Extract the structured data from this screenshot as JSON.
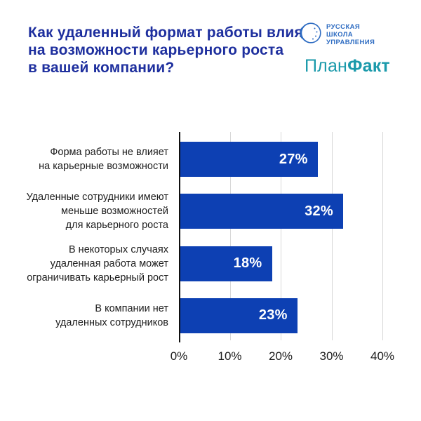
{
  "header": {
    "title_color": "#1e2f9e"
  },
  "logos": {
    "rsu": {
      "text": "РУССКАЯ\nШКОЛА\nУПРАВЛЕНИЯ",
      "color": "#2e6cc2",
      "icon": "face-in-circle-emblem-icon"
    },
    "planfact": {
      "text_regular": "План",
      "text_bold": "Факт",
      "color": "#1b9aab"
    }
  },
  "chart_data": {
    "type": "bar",
    "orientation": "horizontal",
    "title": "Как удаленный формат работы влияет\nна возможности карьерного роста\nв вашей компании?",
    "categories": [
      "Форма работы не влияет\nна карьерные возможности",
      "Удаленные сотрудники имеют\nменьше возможностей\nдля карьерного роста",
      "В некоторых случаях\nудаленная работа может\nограничивать карьерный рост",
      "В компании нет\nудаленных сотрудников"
    ],
    "values": [
      27,
      32,
      18,
      23
    ],
    "value_labels": [
      "27%",
      "32%",
      "18%",
      "23%"
    ],
    "value_suffix": "%",
    "x_ticks": [
      "0%",
      "10%",
      "20%",
      "30%",
      "40%"
    ],
    "xlim": [
      0,
      42
    ],
    "grid": "vertical gridlines every 10%",
    "legend": "none",
    "bar_color": "#0d40b3",
    "value_label_color": "#ffffff",
    "grid_color": "#d8d8d8",
    "axis_color": "#111111",
    "tick_label_color": "#1d1d1d",
    "category_label_color": "#1d1d1d"
  }
}
